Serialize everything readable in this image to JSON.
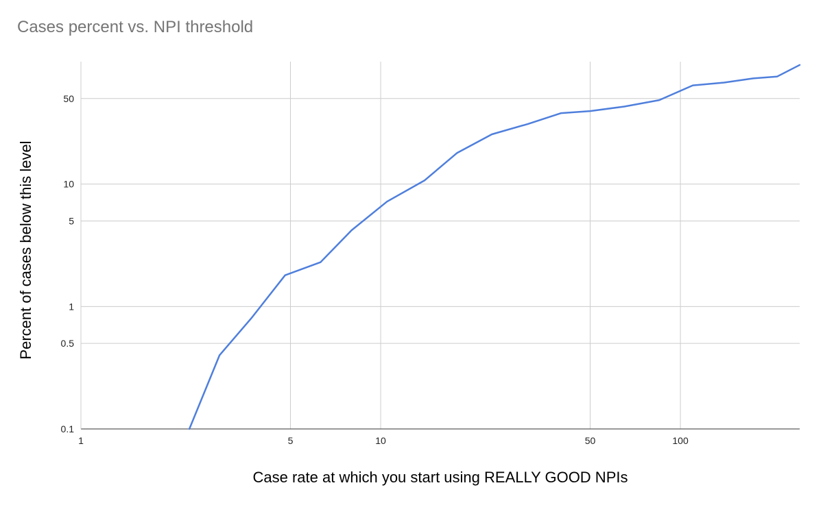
{
  "chart_data": {
    "type": "line",
    "title": "Cases percent vs. NPI threshold",
    "xlabel": "Case rate at which you start using REALLY GOOD NPIs",
    "ylabel": "Percent of cases below this level",
    "x_scale": "log",
    "y_scale": "log",
    "xlim": [
      1,
      250
    ],
    "ylim": [
      0.1,
      100
    ],
    "x_ticks": [
      {
        "value": 1,
        "label": "1"
      },
      {
        "value": 5,
        "label": "5"
      },
      {
        "value": 10,
        "label": "10"
      },
      {
        "value": 50,
        "label": "50"
      },
      {
        "value": 100,
        "label": "100"
      }
    ],
    "y_ticks": [
      {
        "value": 0.1,
        "label": "0.1"
      },
      {
        "value": 0.5,
        "label": "0.5"
      },
      {
        "value": 1,
        "label": "1"
      },
      {
        "value": 5,
        "label": "5"
      },
      {
        "value": 10,
        "label": "10"
      },
      {
        "value": 50,
        "label": "50"
      }
    ],
    "grid": true,
    "series": [
      {
        "color": "#4f7fdc",
        "x": [
          2.3,
          2.9,
          3.7,
          4.8,
          6.3,
          8.0,
          10.5,
          14.0,
          18.0,
          23.5,
          31.0,
          40.0,
          50.0,
          65.0,
          85.0,
          110.0,
          140.0,
          175.0,
          210.0,
          250.0
        ],
        "y": [
          0.1,
          0.4,
          0.8,
          1.8,
          2.3,
          4.2,
          7.2,
          10.7,
          18.0,
          25.5,
          31.0,
          38.0,
          39.5,
          43.0,
          48.5,
          64.0,
          67.5,
          73.0,
          75.5,
          94.0
        ]
      }
    ]
  }
}
